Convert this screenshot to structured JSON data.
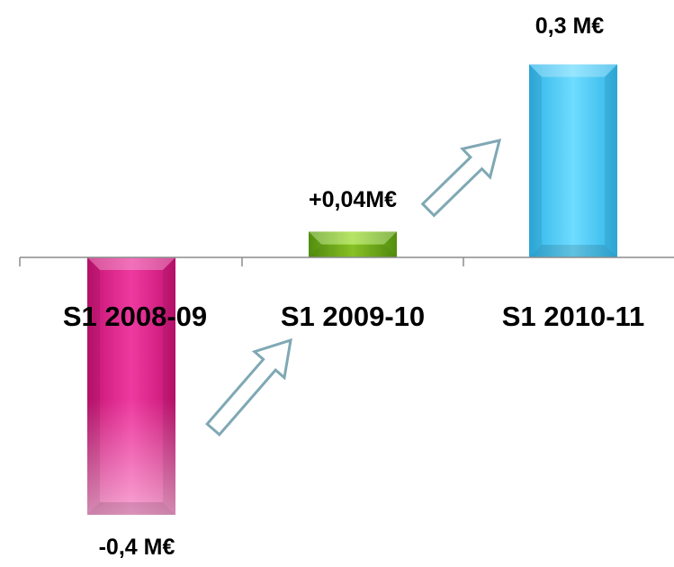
{
  "chart_data": {
    "type": "bar",
    "categories": [
      "S1 2008-09",
      "S1 2009-10",
      "S1 2010-11"
    ],
    "values": [
      -0.4,
      0.04,
      0.3
    ],
    "data_labels": [
      "-0,4 M€",
      "+0,04M€",
      "0,3 M€"
    ],
    "colors": [
      "#e0288e",
      "#7fc31c",
      "#48c8f0"
    ],
    "ylim": [
      -0.42,
      0.32
    ],
    "grid": false,
    "legend": "none"
  }
}
